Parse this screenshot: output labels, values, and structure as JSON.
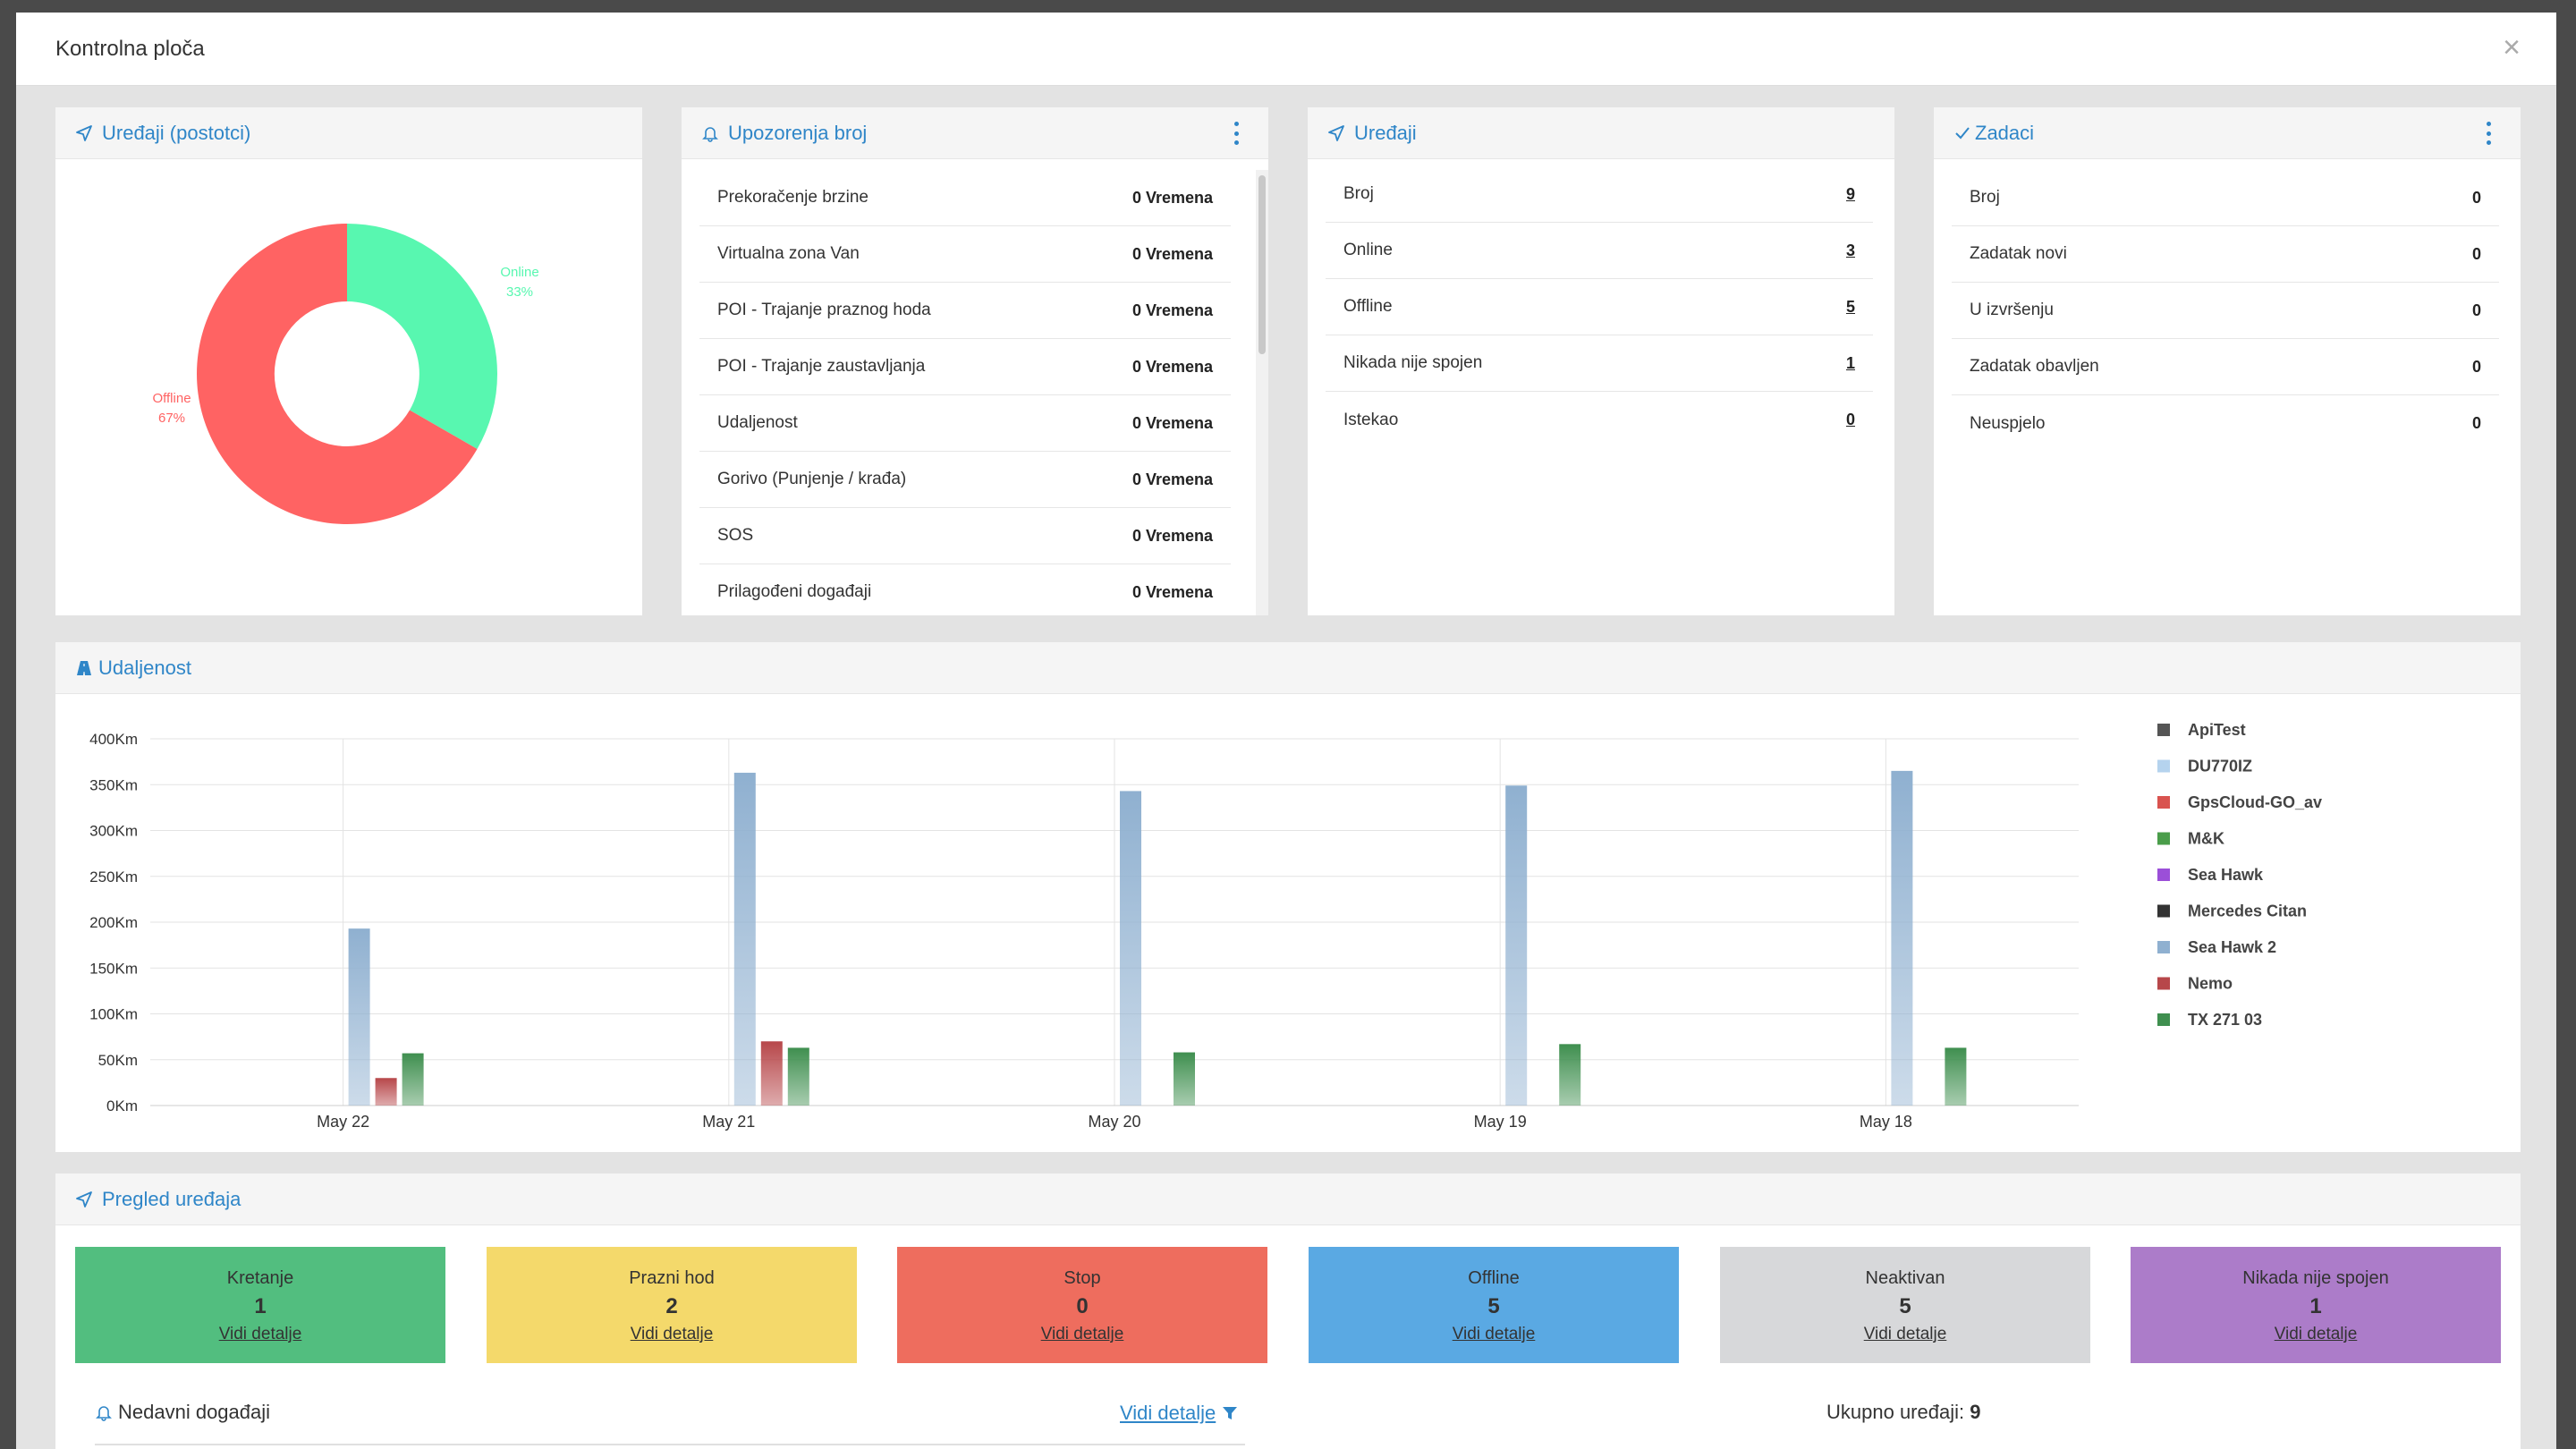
{
  "modal": {
    "title": "Kontrolna ploča",
    "close": "×"
  },
  "devices_percent": {
    "title": "Uređaji (postotci)",
    "online_label": "Online",
    "online_pct": "33%",
    "offline_label": "Offline",
    "offline_pct": "67%",
    "colors": {
      "online": "#58f7b0",
      "offline": "#ff6363"
    }
  },
  "warnings": {
    "title": "Upozorenja broj",
    "rows": [
      {
        "label": "Prekoračenje brzine",
        "value": "0 Vremena"
      },
      {
        "label": "Virtualna zona Van",
        "value": "0 Vremena"
      },
      {
        "label": "POI - Trajanje praznog hoda",
        "value": "0 Vremena"
      },
      {
        "label": "POI - Trajanje zaustavljanja",
        "value": "0 Vremena"
      },
      {
        "label": "Udaljenost",
        "value": "0 Vremena"
      },
      {
        "label": "Gorivo (Punjenje / krađa)",
        "value": "0 Vremena"
      },
      {
        "label": "SOS",
        "value": "0 Vremena"
      },
      {
        "label": "Prilagođeni događaji",
        "value": "0 Vremena"
      }
    ]
  },
  "devices": {
    "title": "Uređaji",
    "rows": [
      {
        "label": "Broj",
        "value": "9"
      },
      {
        "label": "Online",
        "value": "3"
      },
      {
        "label": "Offline",
        "value": "5"
      },
      {
        "label": "Nikada nije spojen",
        "value": "1"
      },
      {
        "label": "Istekao",
        "value": "0"
      }
    ]
  },
  "tasks": {
    "title": "Zadaci",
    "rows": [
      {
        "label": "Broj",
        "value": "0"
      },
      {
        "label": "Zadatak novi",
        "value": "0"
      },
      {
        "label": "U izvršenju",
        "value": "0"
      },
      {
        "label": "Zadatak obavljen",
        "value": "0"
      },
      {
        "label": "Neuspjelo",
        "value": "0"
      }
    ]
  },
  "distance": {
    "title": "Udaljenost"
  },
  "chart_data": {
    "type": "bar",
    "categories": [
      "May 22",
      "May 21",
      "May 20",
      "May 19",
      "May 18"
    ],
    "ylim": [
      0,
      400
    ],
    "yticks": [
      "0Km",
      "50Km",
      "100Km",
      "150Km",
      "200Km",
      "250Km",
      "300Km",
      "350Km",
      "400Km"
    ],
    "series": [
      {
        "name": "ApiTest",
        "color": "#555555",
        "values": [
          0,
          0,
          0,
          0,
          0
        ]
      },
      {
        "name": "DU770IZ",
        "color": "#b5d3ee",
        "values": [
          0,
          0,
          0,
          0,
          0
        ]
      },
      {
        "name": "GpsCloud-GO_av",
        "color": "#d9534f",
        "values": [
          0,
          0,
          0,
          0,
          0
        ]
      },
      {
        "name": "M&K",
        "color": "#4a9d4a",
        "values": [
          0,
          0,
          0,
          0,
          0
        ]
      },
      {
        "name": "Sea Hawk",
        "color": "#9b4fd8",
        "values": [
          0,
          0,
          0,
          0,
          0
        ]
      },
      {
        "name": "Mercedes Citan",
        "color": "#333333",
        "values": [
          0,
          0,
          0,
          0,
          0
        ]
      },
      {
        "name": "Sea Hawk 2",
        "color": "#8fb0d0",
        "values": [
          193,
          363,
          343,
          349,
          365
        ]
      },
      {
        "name": "Nemo",
        "color": "#b7474a",
        "values": [
          30,
          70,
          0,
          0,
          0
        ]
      },
      {
        "name": "TX 271 03",
        "color": "#3f8f4f",
        "values": [
          57,
          63,
          58,
          67,
          63
        ]
      }
    ]
  },
  "overview": {
    "title": "Pregled uređaja",
    "tiles": [
      {
        "label": "Kretanje",
        "value": "1",
        "link": "Vidi detalje",
        "color": "#52be7f"
      },
      {
        "label": "Prazni hod",
        "value": "2",
        "link": "Vidi detalje",
        "color": "#f4d96b"
      },
      {
        "label": "Stop",
        "value": "0",
        "link": "Vidi detalje",
        "color": "#ee6d5e"
      },
      {
        "label": "Offline",
        "value": "5",
        "link": "Vidi detalje",
        "color": "#5aa9e3"
      },
      {
        "label": "Neaktivan",
        "value": "5",
        "link": "Vidi detalje",
        "color": "#d7d8da"
      },
      {
        "label": "Nikada nije spojen",
        "value": "1",
        "link": "Vidi detalje",
        "color": "#ac7cc9"
      }
    ],
    "recent_events": "Nedavni događaji",
    "recent_link": "Vidi detalje",
    "total_label": "Ukupno uređaji:",
    "total_value": "9"
  }
}
